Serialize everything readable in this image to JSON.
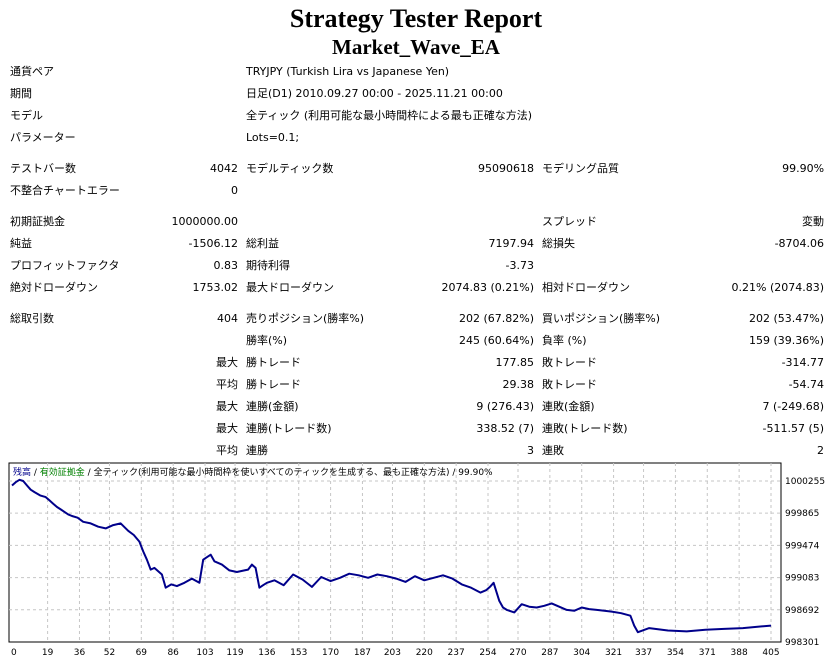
{
  "header": {
    "title": "Strategy Tester Report",
    "subtitle": "Market_Wave_EA"
  },
  "info": {
    "symbol_label": "通貨ペア",
    "symbol_value": "TRYJPY (Turkish Lira vs Japanese Yen)",
    "period_label": "期間",
    "period_value": "日足(D1) 2010.09.27 00:00 - 2025.11.21 00:00",
    "model_label": "モデル",
    "model_value": "全ティック (利用可能な最小時間枠による最も正確な方法)",
    "params_label": "パラメーター",
    "params_value": "Lots=0.1;"
  },
  "stats": {
    "bars_label": "テストバー数",
    "bars_value": "4042",
    "ticks_label": "モデルティック数",
    "ticks_value": "95090618",
    "quality_label": "モデリング品質",
    "quality_value": "99.90%",
    "mismatch_label": "不整合チャートエラー",
    "mismatch_value": "0",
    "deposit_label": "初期証拠金",
    "deposit_value": "1000000.00",
    "spread_label": "スプレッド",
    "spread_value": "変動",
    "net_label": "純益",
    "net_value": "-1506.12",
    "gross_profit_label": "総利益",
    "gross_profit_value": "7197.94",
    "gross_loss_label": "総損失",
    "gross_loss_value": "-8704.06",
    "pf_label": "プロフィットファクタ",
    "pf_value": "0.83",
    "expected_label": "期待利得",
    "expected_value": "-3.73",
    "abs_dd_label": "絶対ドローダウン",
    "abs_dd_value": "1753.02",
    "max_dd_label": "最大ドローダウン",
    "max_dd_value": "2074.83 (0.21%)",
    "rel_dd_label": "相対ドローダウン",
    "rel_dd_value": "0.21% (2074.83)",
    "trades_label": "総取引数",
    "trades_value": "404",
    "short_label": "売りポジション(勝率%)",
    "short_value": "202 (67.82%)",
    "long_label": "買いポジション(勝率%)",
    "long_value": "202 (53.47%)",
    "win_rate_label": "勝率(%)",
    "win_rate_value": "245 (60.64%)",
    "loss_rate_label": "負率 (%)",
    "loss_rate_value": "159 (39.36%)",
    "largest_prefix": "最大",
    "largest_win_label": "勝トレード",
    "largest_win_value": "177.85",
    "largest_loss_label": "敗トレード",
    "largest_loss_value": "-314.77",
    "average_prefix": "平均",
    "avg_win_label": "勝トレード",
    "avg_win_value": "29.38",
    "avg_loss_label": "敗トレード",
    "avg_loss_value": "-54.74",
    "max_prefix_1": "最大",
    "max_consec_wins_money_label": "連勝(金額)",
    "max_consec_wins_money_value": "9 (276.43)",
    "max_consec_losses_money_label": "連敗(金額)",
    "max_consec_losses_money_value": "7 (-249.68)",
    "max_prefix_2": "最大",
    "max_consec_profit_label": "連勝(トレード数)",
    "max_consec_profit_value": "338.52 (7)",
    "max_consec_loss_label": "連敗(トレード数)",
    "max_consec_loss_value": "-511.57 (5)",
    "avg_prefix_2": "平均",
    "avg_consec_wins_label": "連勝",
    "avg_consec_wins_value": "3",
    "avg_consec_losses_label": "連敗",
    "avg_consec_losses_value": "2"
  },
  "chart_data": {
    "type": "line",
    "legend_balance": "残高",
    "legend_sep1": " / ",
    "legend_equity": "有効証拠金",
    "legend_sep2": " / ",
    "legend_model": "全ティック(利用可能な最小時間枠を使いすべてのティックを生成する、最も正確な方法)",
    "legend_sep3": " / ",
    "legend_quality": "99.90%",
    "legend_position": "top-left",
    "grid": true,
    "colors": {
      "balance": "#00008b",
      "equity": "#008000",
      "grid": "#c6c6c6"
    },
    "x_ticks": [
      "0",
      "19",
      "36",
      "52",
      "69",
      "86",
      "103",
      "119",
      "136",
      "153",
      "170",
      "187",
      "203",
      "220",
      "237",
      "254",
      "270",
      "287",
      "304",
      "321",
      "337",
      "354",
      "371",
      "388",
      "405"
    ],
    "y_ticks": [
      "1000255",
      "999865",
      "999474",
      "999083",
      "998692",
      "998301"
    ],
    "xlim": [
      0,
      405
    ],
    "ylim": [
      998301,
      1000255
    ],
    "x": [
      0,
      2,
      4,
      6,
      8,
      10,
      12,
      15,
      18,
      20,
      22,
      24,
      26,
      28,
      30,
      32,
      35,
      38,
      42,
      46,
      50,
      54,
      58,
      62,
      65,
      68,
      70,
      72,
      74,
      76,
      78,
      80,
      82,
      85,
      88,
      92,
      96,
      100,
      102,
      104,
      106,
      108,
      112,
      116,
      120,
      124,
      126,
      128,
      130,
      132,
      134,
      136,
      140,
      145,
      150,
      155,
      160,
      165,
      170,
      175,
      180,
      185,
      190,
      195,
      200,
      205,
      210,
      215,
      220,
      225,
      230,
      235,
      240,
      245,
      250,
      253,
      255,
      257,
      260,
      262,
      264,
      268,
      272,
      276,
      280,
      284,
      288,
      292,
      296,
      300,
      304,
      308,
      312,
      316,
      320,
      325,
      330,
      332,
      334,
      340,
      350,
      360,
      370,
      380,
      390,
      400,
      405
    ],
    "values": [
      1000200,
      1000240,
      1000270,
      1000255,
      1000200,
      1000150,
      1000120,
      1000080,
      1000060,
      1000020,
      999980,
      999940,
      999910,
      999880,
      999850,
      999830,
      999810,
      999760,
      999740,
      999700,
      999680,
      999720,
      999740,
      999650,
      999600,
      999520,
      999400,
      999300,
      999180,
      999200,
      999160,
      999120,
      998960,
      999000,
      998980,
      999020,
      999070,
      999020,
      999300,
      999330,
      999360,
      999280,
      999240,
      999170,
      999150,
      999170,
      999180,
      999240,
      999200,
      998960,
      998990,
      999020,
      999050,
      998990,
      999120,
      999060,
      998970,
      999090,
      999040,
      999080,
      999130,
      999110,
      999080,
      999120,
      999100,
      999070,
      999030,
      999100,
      999050,
      999080,
      999110,
      999070,
      999000,
      998960,
      998900,
      998930,
      998970,
      999020,
      998800,
      998720,
      998690,
      998660,
      998760,
      998730,
      998720,
      998740,
      998770,
      998730,
      998690,
      998680,
      998720,
      998700,
      998690,
      998680,
      998670,
      998650,
      998620,
      998500,
      998420,
      998470,
      998440,
      998430,
      998450,
      998460,
      998470,
      998490,
      998500
    ]
  }
}
